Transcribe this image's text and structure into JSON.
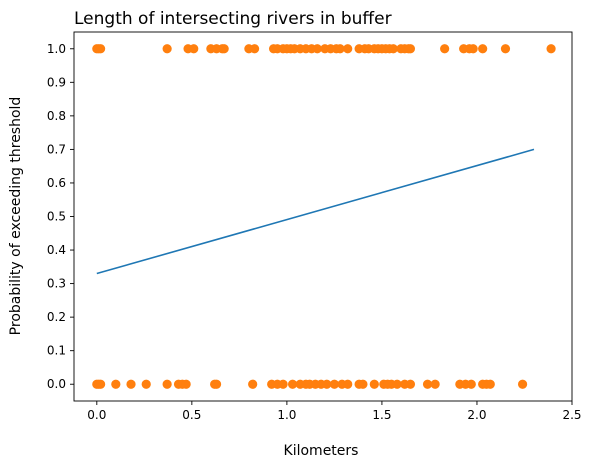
{
  "chart_data": {
    "type": "scatter",
    "title": "Length of intersecting rivers in buffer",
    "xlabel": "Kilometers",
    "ylabel": "Probability of exceeding threshold",
    "xlim": [
      -0.12,
      2.5
    ],
    "ylim": [
      -0.05,
      1.05
    ],
    "xticks": [
      0.0,
      0.5,
      1.0,
      1.5,
      2.0,
      2.5
    ],
    "xtick_labels": [
      "0.0",
      "0.5",
      "1.0",
      "1.5",
      "2.0",
      "2.5"
    ],
    "yticks": [
      0.0,
      0.1,
      0.2,
      0.3,
      0.4,
      0.5,
      0.6,
      0.7,
      0.8,
      0.9,
      1.0
    ],
    "ytick_labels": [
      "0.0",
      "0.1",
      "0.2",
      "0.3",
      "0.4",
      "0.5",
      "0.6",
      "0.7",
      "0.8",
      "0.9",
      "1.0"
    ],
    "grid": false,
    "series": [
      {
        "type": "line",
        "color": "#1f77b4",
        "x": [
          0.0,
          2.3
        ],
        "y": [
          0.33,
          0.7
        ]
      },
      {
        "type": "scatter",
        "color": "#ff7f0e",
        "points_y1": [
          0.0,
          0.01,
          0.02,
          0.37,
          0.48,
          0.51,
          0.6,
          0.63,
          0.66,
          0.67,
          0.8,
          0.83,
          0.93,
          0.95,
          0.98,
          1.0,
          1.02,
          1.04,
          1.07,
          1.1,
          1.13,
          1.16,
          1.2,
          1.23,
          1.26,
          1.28,
          1.32,
          1.38,
          1.41,
          1.43,
          1.46,
          1.48,
          1.5,
          1.52,
          1.54,
          1.56,
          1.6,
          1.62,
          1.64,
          1.65,
          1.83,
          1.93,
          1.96,
          1.98,
          2.03,
          2.15,
          2.39
        ],
        "points_y0": [
          0.0,
          0.01,
          0.02,
          0.1,
          0.18,
          0.26,
          0.37,
          0.43,
          0.45,
          0.47,
          0.62,
          0.63,
          0.82,
          0.92,
          0.95,
          0.98,
          1.03,
          1.07,
          1.1,
          1.12,
          1.15,
          1.18,
          1.21,
          1.25,
          1.29,
          1.32,
          1.38,
          1.4,
          1.46,
          1.51,
          1.53,
          1.55,
          1.58,
          1.62,
          1.65,
          1.74,
          1.78,
          1.91,
          1.94,
          1.97,
          2.03,
          2.05,
          2.07,
          2.24
        ]
      }
    ]
  }
}
